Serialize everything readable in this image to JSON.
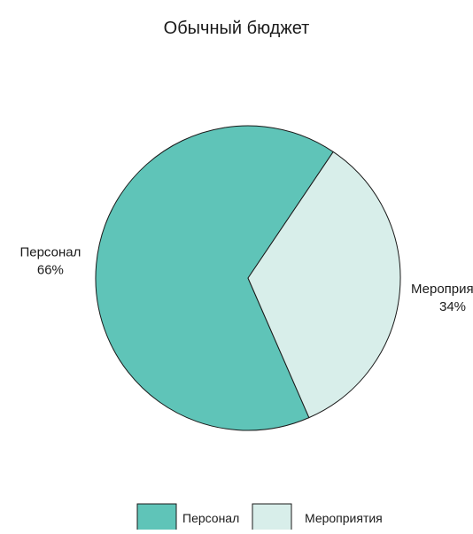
{
  "chart_data": {
    "type": "pie",
    "title": "Обычный бюджет",
    "slices": [
      {
        "label": "Персонал",
        "value": 66,
        "value_label": "66%",
        "color": "#5fc4b8"
      },
      {
        "label": "Мероприятия",
        "value": 34,
        "value_label": "34%",
        "color": "#d8eeea"
      }
    ],
    "legend": {
      "position": "bottom",
      "items": [
        {
          "label": "Персонал",
          "color": "#5fc4b8"
        },
        {
          "label": "Мероприятия",
          "color": "#d8eeea"
        }
      ]
    },
    "stroke_color": "#1a1a1a"
  }
}
